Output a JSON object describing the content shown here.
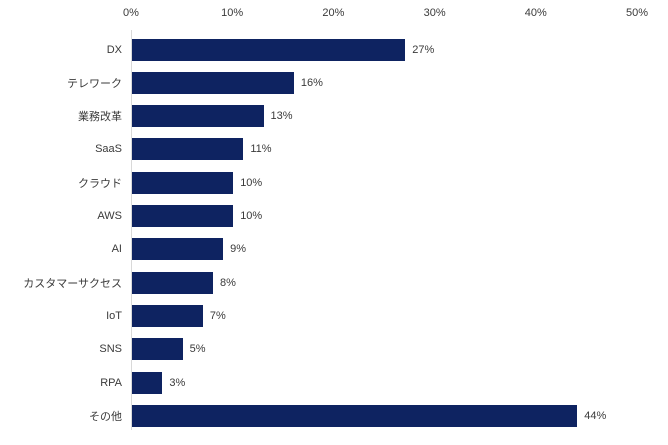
{
  "chart_data": {
    "type": "bar",
    "orientation": "horizontal",
    "title": "",
    "categories": [
      "DX",
      "テレワーク",
      "業務改革",
      "SaaS",
      "クラウド",
      "AWS",
      "AI",
      "カスタマーサクセス",
      "IoT",
      "SNS",
      "RPA",
      "その他"
    ],
    "values": [
      27,
      16,
      13,
      11,
      10,
      10,
      9,
      8,
      7,
      5,
      3,
      44
    ],
    "value_labels": [
      "27%",
      "16%",
      "13%",
      "11%",
      "10%",
      "10%",
      "9%",
      "8%",
      "7%",
      "5%",
      "3%",
      "44%"
    ],
    "x_axis": {
      "position": "top",
      "range": [
        0,
        50
      ],
      "ticks": [
        0,
        10,
        20,
        30,
        40,
        50
      ],
      "tick_labels": [
        "0%",
        "10%",
        "20%",
        "30%",
        "40%",
        "50%"
      ]
    },
    "grid": false,
    "legend": false,
    "colors": {
      "bar": "#0e2361",
      "axis_line": "#d9d9d9",
      "text": "#3a3a3a"
    }
  }
}
